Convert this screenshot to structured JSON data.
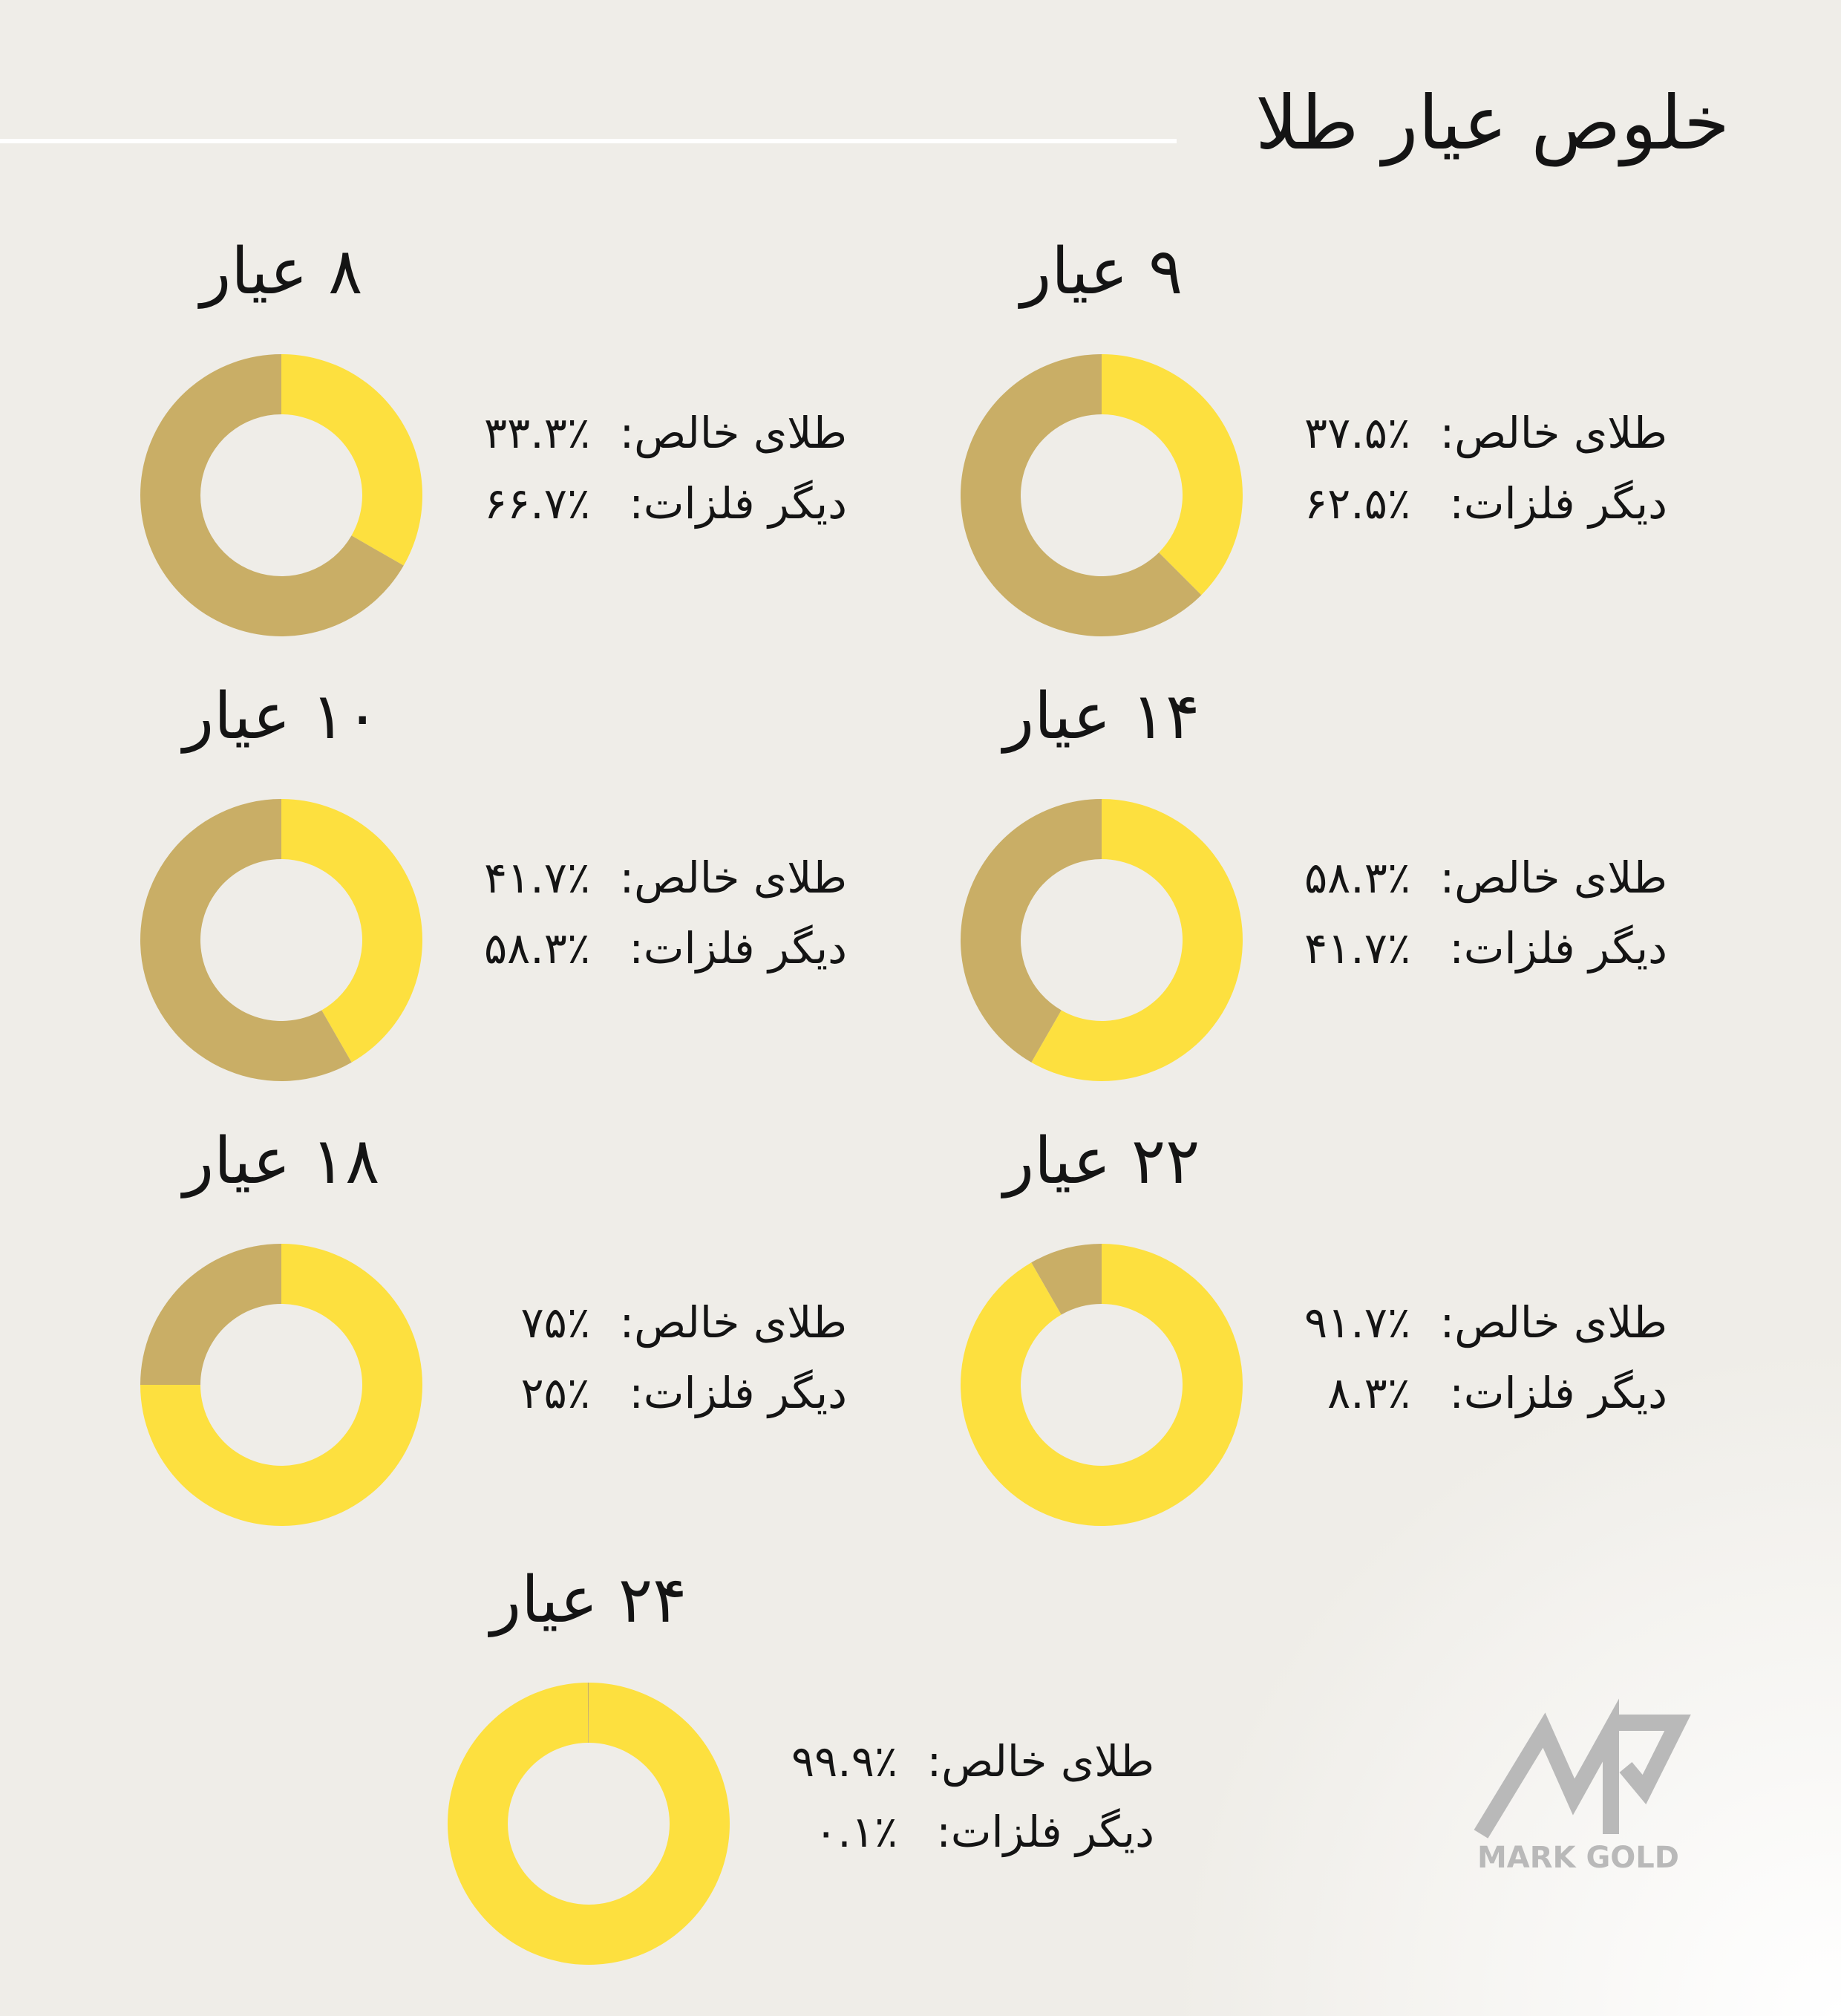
{
  "title": "خلوص عیار طلا",
  "logo": "MARK GOLD",
  "chart_data": [
    {
      "type": "donut",
      "title": "۹ عیار",
      "categories": [
        "طلای خالص:",
        "دیگر فلزات:"
      ],
      "values": [
        37.5,
        62.5
      ],
      "value_labels": [
        "۳۷.۵٪",
        "۶۲.۵٪"
      ],
      "colors": [
        "#fde03f",
        "#c9ae66"
      ]
    },
    {
      "type": "donut",
      "title": "۸ عیار",
      "categories": [
        "طلای خالص:",
        "دیگر فلزات:"
      ],
      "values": [
        33.3,
        66.7
      ],
      "value_labels": [
        "۳۳.۳٪",
        "۶۶.۷٪"
      ],
      "colors": [
        "#fde03f",
        "#c9ae66"
      ]
    },
    {
      "type": "donut",
      "title": "۱۴ عیار",
      "categories": [
        "طلای خالص:",
        "دیگر فلزات:"
      ],
      "values": [
        58.3,
        41.7
      ],
      "value_labels": [
        "۵۸.۳٪",
        "۴۱.۷٪"
      ],
      "colors": [
        "#fde03f",
        "#c9ae66"
      ]
    },
    {
      "type": "donut",
      "title": "۱۰ عیار",
      "categories": [
        "طلای خالص:",
        "دیگر فلزات:"
      ],
      "values": [
        41.7,
        58.3
      ],
      "value_labels": [
        "۴۱.۷٪",
        "۵۸.۳٪"
      ],
      "colors": [
        "#fde03f",
        "#c9ae66"
      ]
    },
    {
      "type": "donut",
      "title": "۲۲ عیار",
      "categories": [
        "طلای خالص:",
        "دیگر فلزات:"
      ],
      "values": [
        91.7,
        8.3
      ],
      "value_labels": [
        "۹۱.۷٪",
        "۸.۳٪"
      ],
      "colors": [
        "#fde03f",
        "#c9ae66"
      ]
    },
    {
      "type": "donut",
      "title": "۱۸ عیار",
      "categories": [
        "طلای خالص:",
        "دیگر فلزات:"
      ],
      "values": [
        75,
        25
      ],
      "value_labels": [
        "۷۵٪",
        "۲۵٪"
      ],
      "colors": [
        "#fde03f",
        "#c9ae66"
      ]
    },
    {
      "type": "donut",
      "title": "۲۴ عیار",
      "categories": [
        "طلای خالص:",
        "دیگر فلزات:"
      ],
      "values": [
        99.9,
        0.1
      ],
      "value_labels": [
        "۹۹.۹٪",
        "۰.۱٪"
      ],
      "colors": [
        "#fde03f",
        "#c9ae66"
      ]
    }
  ]
}
